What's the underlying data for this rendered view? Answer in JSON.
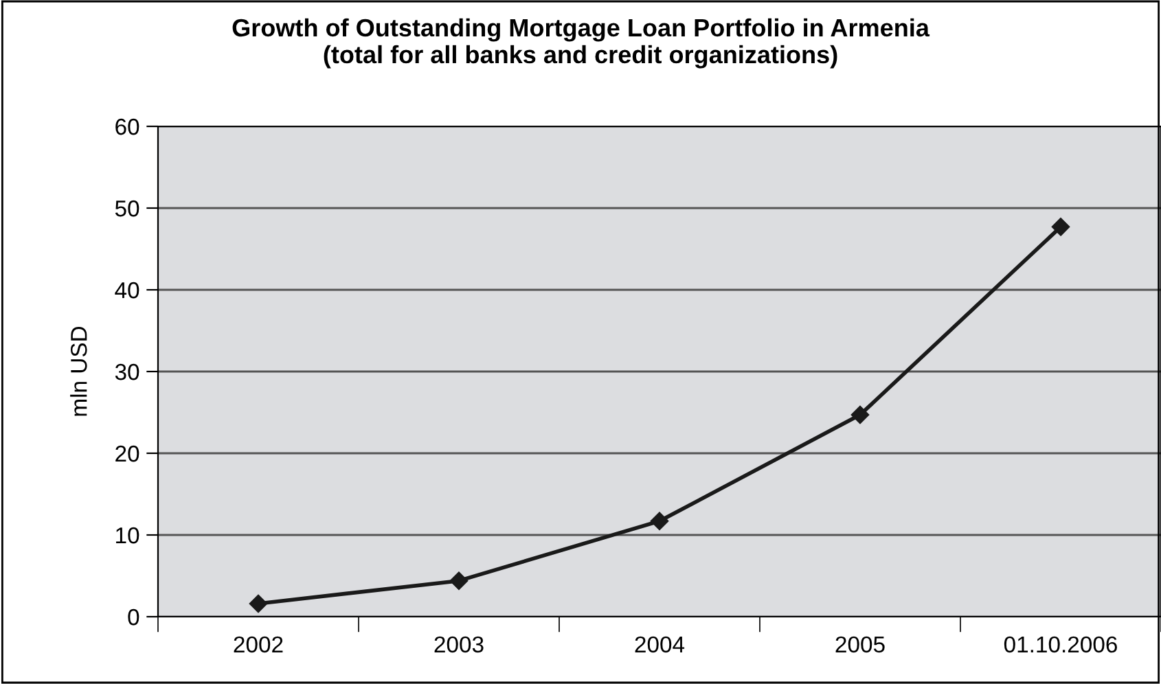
{
  "chart_data": {
    "type": "line",
    "title": "Growth of Outstanding Mortgage Loan Portfolio in Armenia\n(total for all banks and credit organizations)",
    "ylabel": "mln USD",
    "categories": [
      "2002",
      "2003",
      "2004",
      "2005",
      "01.10.2006"
    ],
    "series": [
      {
        "color": "#1a1a1a",
        "values": [
          1.6,
          4.4,
          11.7,
          24.7,
          47.7
        ]
      }
    ],
    "ylim": [
      0,
      60
    ],
    "yticks": [
      0,
      10,
      20,
      30,
      40,
      50,
      60
    ],
    "grid": "y",
    "marker": "diamond",
    "line_style": "solid",
    "legend": false
  }
}
